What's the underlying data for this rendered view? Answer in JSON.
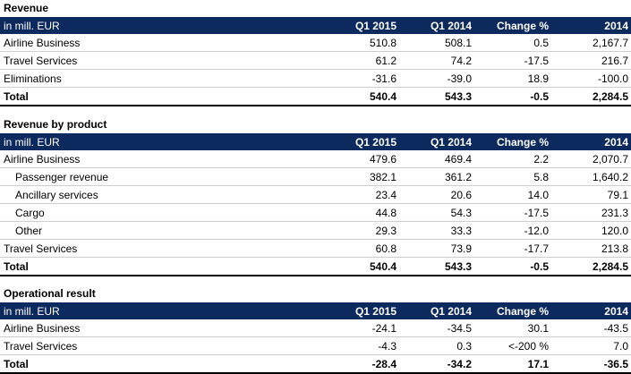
{
  "sections": [
    {
      "title": "Revenue",
      "header": [
        "in mill. EUR",
        "Q1 2015",
        "Q1 2014",
        "Change %",
        "2014"
      ],
      "rows": [
        [
          "Airline Business",
          "510.8",
          "508.1",
          "0.5",
          "2,167.7"
        ],
        [
          "Travel Services",
          "61.2",
          "74.2",
          "-17.5",
          "216.7"
        ],
        [
          "Eliminations",
          "-31.6",
          "-39.0",
          "18.9",
          "-100.0"
        ]
      ],
      "total": [
        "Total",
        "540.4",
        "543.3",
        "-0.5",
        "2,284.5"
      ]
    },
    {
      "title": "Revenue by product",
      "header": [
        "in mill. EUR",
        "Q1 2015",
        "Q1 2014",
        "Change %",
        "2014"
      ],
      "rows": [
        [
          "Airline Business",
          "479.6",
          "469.4",
          "2.2",
          "2,070.7"
        ],
        [
          "Passenger revenue",
          "382.1",
          "361.2",
          "5.8",
          "1,640.2"
        ],
        [
          "Ancillary services",
          "23.4",
          "20.6",
          "14.0",
          "79.1"
        ],
        [
          "Cargo",
          "44.8",
          "54.3",
          "-17.5",
          "231.3"
        ],
        [
          "Other",
          "29.3",
          "33.3",
          "-12.0",
          "120.0"
        ],
        [
          "Travel Services",
          "60.8",
          "73.9",
          "-17.7",
          "213.8"
        ]
      ],
      "total": [
        "Total",
        "540.4",
        "543.3",
        "-0.5",
        "2,284.5"
      ]
    },
    {
      "title": "Operational result",
      "header": [
        "in mill. EUR",
        "Q1 2015",
        "Q1 2014",
        "Change %",
        "2014"
      ],
      "rows": [
        [
          "Airline Business",
          "-24.1",
          "-34.5",
          "30.1",
          "-43.5"
        ],
        [
          "Travel Services",
          "-4.3",
          "0.3",
          "<-200 %",
          "7.0"
        ]
      ],
      "total": [
        "Total",
        "-28.4",
        "-34.2",
        "17.1",
        "-36.5"
      ]
    }
  ]
}
